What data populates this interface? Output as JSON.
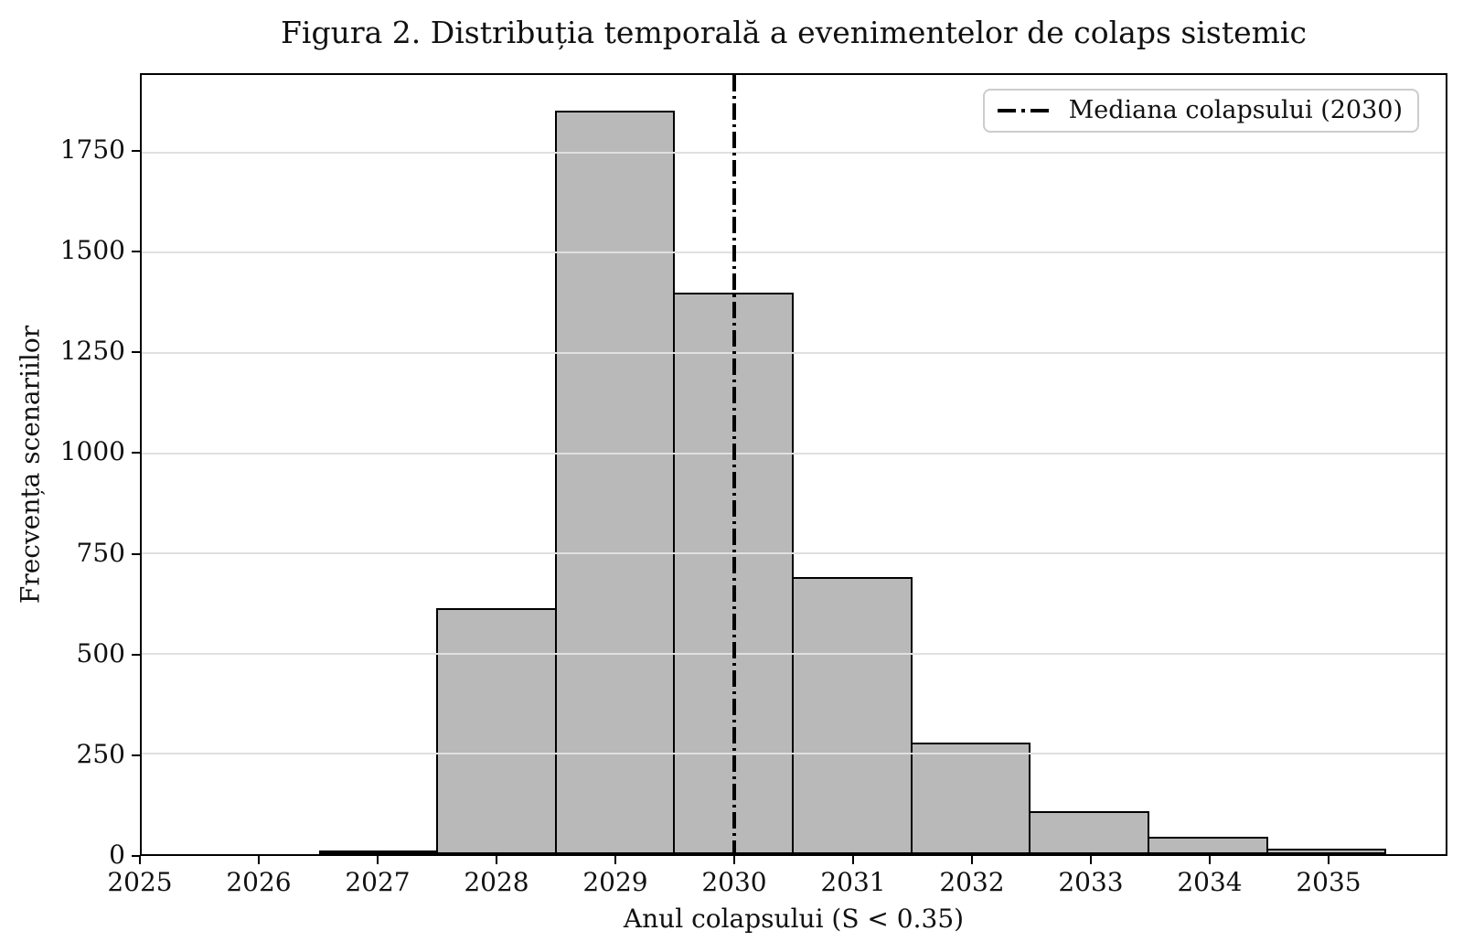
{
  "figure": {
    "title": "Figura 2. Distribuția temporală a evenimentelor de colaps sistemic",
    "x_axis_label": "Anul colapsului (S < 0.35)",
    "y_axis_label": "Frecvența scenariilor",
    "legend": {
      "items": [
        {
          "label": "Mediana colapsului (2030)",
          "line_style": "dashdot",
          "color": "#000000"
        }
      ]
    }
  },
  "chart_data": {
    "type": "bar",
    "subtype": "histogram",
    "title": "Figura 2. Distribuția temporală a evenimentelor de colaps sistemic",
    "xlabel": "Anul colapsului (S < 0.35)",
    "ylabel": "Frecvența scenariilor",
    "bin_edges": [
      2026.5,
      2027.5,
      2028.5,
      2029.5,
      2030.5,
      2031.5,
      2032.5,
      2033.5,
      2034.5,
      2035.5
    ],
    "bin_centers": [
      2027,
      2028,
      2029,
      2030,
      2031,
      2032,
      2033,
      2034,
      2035
    ],
    "values": [
      10,
      610,
      1845,
      1394,
      688,
      277,
      107,
      44,
      14
    ],
    "x_ticks": [
      2025,
      2026,
      2027,
      2028,
      2029,
      2030,
      2031,
      2032,
      2033,
      2034,
      2035
    ],
    "y_ticks": [
      0,
      250,
      500,
      750,
      1000,
      1250,
      1500,
      1750
    ],
    "xlim": [
      2025,
      2036
    ],
    "ylim": [
      0,
      1943
    ],
    "grid": "horizontal",
    "grid_on": true,
    "legend_position": "upper right",
    "annotations": [
      {
        "type": "vline",
        "x": 2030,
        "style": "dashdot",
        "label": "Mediana colapsului (2030)"
      }
    ],
    "colors": {
      "bar_fill": "#b9b9b9",
      "bar_edge": "#000000",
      "grid_line": "#e0e0e0",
      "median_line": "#000000",
      "background": "#ffffff",
      "legend_border": "#cccccc",
      "text": "#111111"
    }
  }
}
